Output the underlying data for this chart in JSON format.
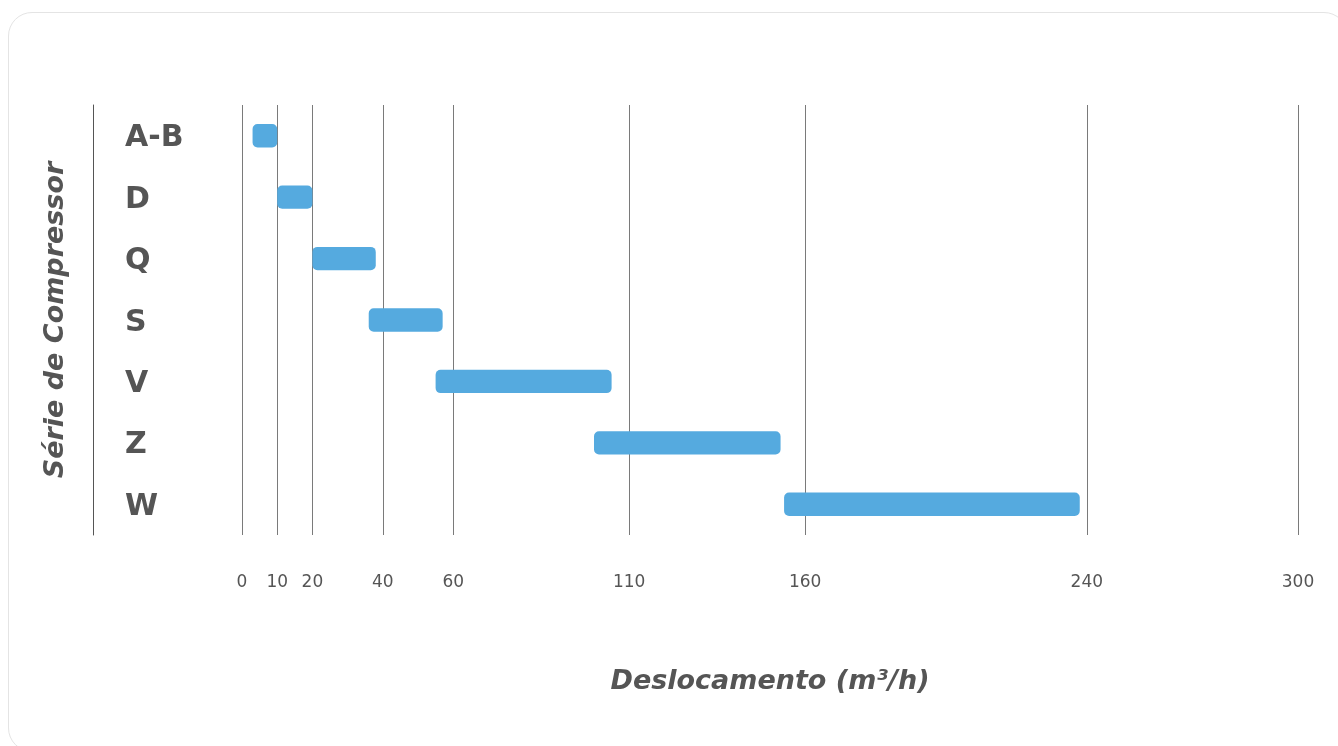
{
  "chart_data": {
    "type": "bar",
    "orientation": "horizontal",
    "categories": [
      "A-B",
      "D",
      "Q",
      "S",
      "V",
      "Z",
      "W"
    ],
    "base": [
      3,
      10,
      20,
      36,
      55,
      100,
      154
    ],
    "values": [
      7,
      10,
      18,
      21,
      50,
      53,
      84
    ],
    "color": "#55aadf",
    "xlim": [
      0,
      300
    ],
    "xticks": [
      0,
      10,
      20,
      40,
      60,
      110,
      160,
      240,
      300
    ],
    "grid": "x",
    "xlabel": "Deslocamento (m³/h)",
    "ylabel": "Série de Compressor"
  }
}
